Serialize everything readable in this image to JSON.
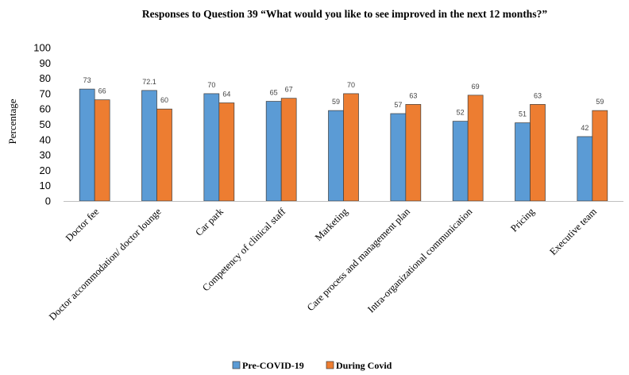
{
  "chart_data": {
    "type": "bar",
    "title": "Responses to Question 39 “What would you like to see improved in the next 12 months?”",
    "xlabel": "",
    "ylabel": "Percentage",
    "ylim": [
      0,
      100
    ],
    "yticks": [
      0,
      10,
      20,
      30,
      40,
      50,
      60,
      70,
      80,
      90,
      100
    ],
    "grid": false,
    "legend_position": "bottom",
    "categories": [
      "Doctor fee",
      "Doctor accommodation/ doctor lounge",
      "Car park",
      "Competency of clinical staff",
      "Marketing",
      "Care process and management plan",
      "Intra-organizational communication",
      "Pricing",
      "Executive team"
    ],
    "series": [
      {
        "name": "Pre-COVID-19",
        "color": "#5b9bd5",
        "values": [
          73,
          72.1,
          70,
          65,
          59,
          57,
          52,
          51,
          42
        ]
      },
      {
        "name": "During Covid",
        "color": "#ed7d31",
        "values": [
          66,
          60,
          64,
          67,
          70,
          63,
          69,
          63,
          59
        ]
      }
    ]
  }
}
